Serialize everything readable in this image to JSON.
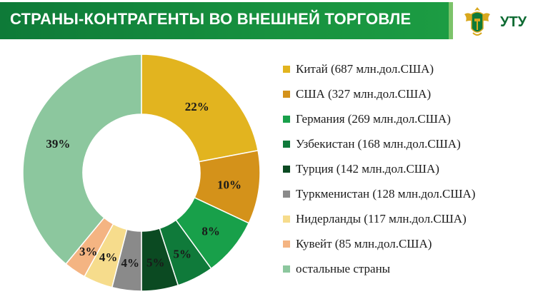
{
  "header": {
    "title": "СТРАНЫ-КОНТРАГЕНТЫ ВО ВНЕШНЕЙ ТОРГОВЛЕ",
    "logo_text": "УТУ",
    "logo_icon": "eagle-emblem-icon"
  },
  "chart_data": {
    "type": "pie",
    "donut": true,
    "legend_position": "right",
    "start_angle": "top, clockwise",
    "categories": [
      "Китай  (687 млн.дол.США)",
      "США (327 млн.дол.США)",
      "Германия (269  млн.дол.США)",
      "Узбекистан (168  млн.дол.США)",
      "Турция (142  млн.дол.США)",
      "Туркменистан (128  млн.дол.США)",
      "Нидерланды (117  млн.дол.США)",
      "Кувейт (85  млн.дол.США)",
      "остальные страны"
    ],
    "values": [
      22,
      10,
      8,
      5,
      5,
      4,
      4,
      3,
      39
    ],
    "data_labels": [
      "22%",
      "10%",
      "8%",
      "5%",
      "5%",
      "4%",
      "4%",
      "3%",
      "39%"
    ],
    "colors": [
      "#e2b41f",
      "#d4921a",
      "#18a04a",
      "#0f7a3a",
      "#0b4a22",
      "#8a8a8a",
      "#f6dc8c",
      "#f4b482",
      "#8cc79e"
    ]
  }
}
